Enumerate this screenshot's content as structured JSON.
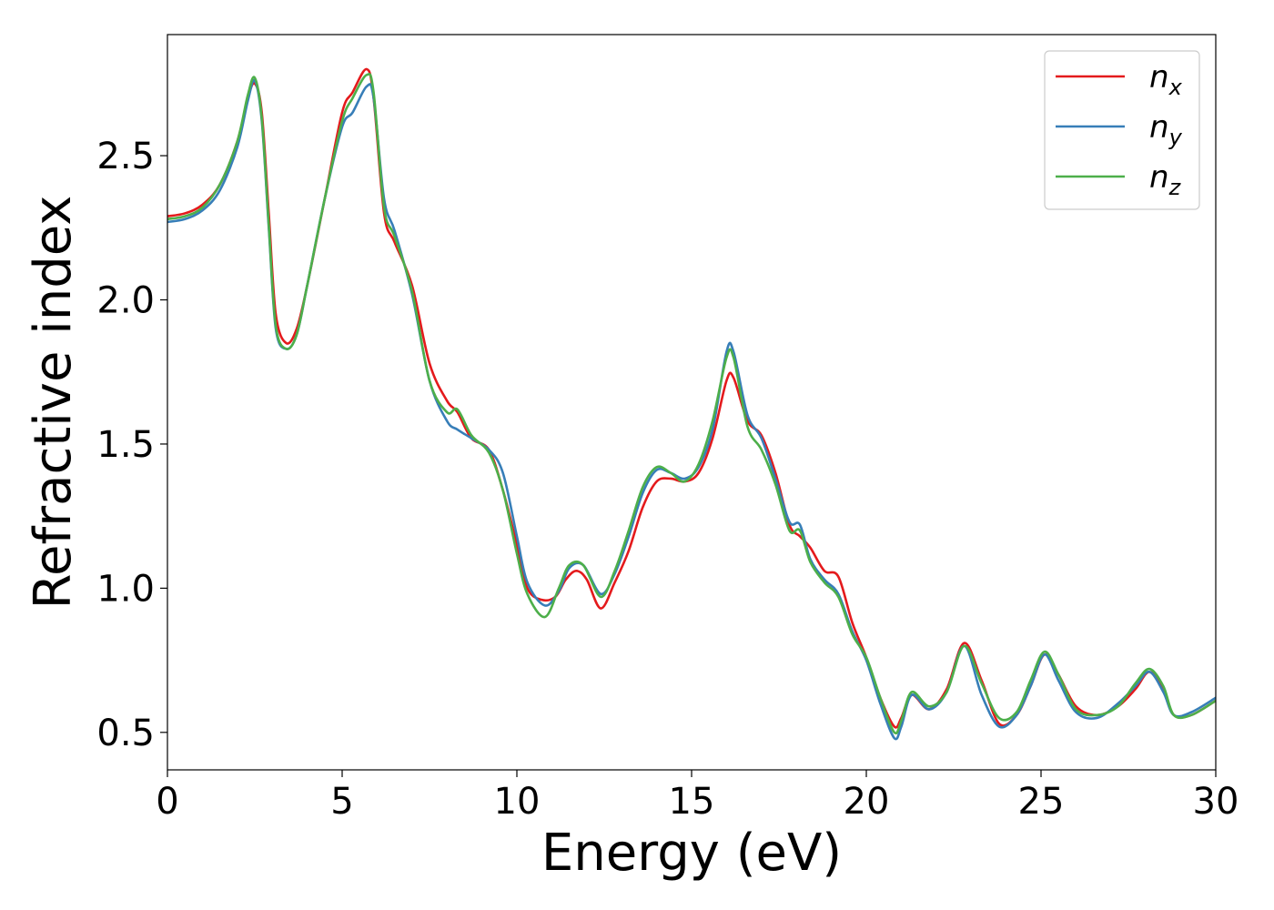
{
  "chart_data": {
    "type": "line",
    "xlabel": "Energy (eV)",
    "ylabel": "Refractive index",
    "xlim": [
      0,
      30
    ],
    "ylim": [
      0.37,
      2.92
    ],
    "xticks": [
      0,
      5,
      10,
      15,
      20,
      25,
      30
    ],
    "xtick_labels": [
      "0",
      "5",
      "10",
      "15",
      "20",
      "25",
      "30"
    ],
    "yticks": [
      0.5,
      1.0,
      1.5,
      2.0,
      2.5
    ],
    "ytick_labels": [
      "0.5",
      "1.0",
      "1.5",
      "2.0",
      "2.5"
    ],
    "grid": false,
    "legend": {
      "position": "top-right"
    },
    "series": [
      {
        "name": "n",
        "subscript": "x",
        "color": "#e41a1c",
        "points": [
          [
            0,
            2.29
          ],
          [
            0.5,
            2.3
          ],
          [
            1.0,
            2.33
          ],
          [
            1.5,
            2.4
          ],
          [
            2.0,
            2.55
          ],
          [
            2.3,
            2.7
          ],
          [
            2.5,
            2.75
          ],
          [
            2.7,
            2.65
          ],
          [
            2.9,
            2.3
          ],
          [
            3.1,
            1.95
          ],
          [
            3.4,
            1.85
          ],
          [
            3.7,
            1.9
          ],
          [
            4.0,
            2.05
          ],
          [
            4.5,
            2.35
          ],
          [
            5.0,
            2.65
          ],
          [
            5.3,
            2.72
          ],
          [
            5.7,
            2.8
          ],
          [
            5.9,
            2.7
          ],
          [
            6.2,
            2.3
          ],
          [
            6.5,
            2.2
          ],
          [
            7.0,
            2.05
          ],
          [
            7.5,
            1.78
          ],
          [
            8.0,
            1.65
          ],
          [
            8.3,
            1.61
          ],
          [
            8.7,
            1.52
          ],
          [
            9.2,
            1.48
          ],
          [
            9.6,
            1.34
          ],
          [
            10.0,
            1.15
          ],
          [
            10.3,
            1.0
          ],
          [
            10.7,
            0.96
          ],
          [
            11.1,
            0.97
          ],
          [
            11.4,
            1.03
          ],
          [
            11.7,
            1.06
          ],
          [
            12.0,
            1.03
          ],
          [
            12.4,
            0.93
          ],
          [
            12.8,
            1.02
          ],
          [
            13.2,
            1.13
          ],
          [
            13.6,
            1.28
          ],
          [
            14.0,
            1.37
          ],
          [
            14.4,
            1.38
          ],
          [
            14.8,
            1.37
          ],
          [
            15.2,
            1.4
          ],
          [
            15.6,
            1.52
          ],
          [
            16.0,
            1.72
          ],
          [
            16.2,
            1.73
          ],
          [
            16.6,
            1.58
          ],
          [
            17.0,
            1.53
          ],
          [
            17.4,
            1.4
          ],
          [
            17.8,
            1.22
          ],
          [
            18.1,
            1.18
          ],
          [
            18.4,
            1.14
          ],
          [
            18.8,
            1.06
          ],
          [
            19.2,
            1.04
          ],
          [
            19.6,
            0.88
          ],
          [
            20.0,
            0.76
          ],
          [
            20.4,
            0.62
          ],
          [
            20.8,
            0.52
          ],
          [
            21.0,
            0.55
          ],
          [
            21.3,
            0.63
          ],
          [
            21.8,
            0.58
          ],
          [
            22.3,
            0.65
          ],
          [
            22.8,
            0.81
          ],
          [
            23.3,
            0.68
          ],
          [
            23.8,
            0.53
          ],
          [
            24.3,
            0.56
          ],
          [
            24.7,
            0.66
          ],
          [
            25.1,
            0.77
          ],
          [
            25.5,
            0.7
          ],
          [
            26.0,
            0.59
          ],
          [
            26.6,
            0.56
          ],
          [
            27.2,
            0.59
          ],
          [
            27.7,
            0.65
          ],
          [
            28.1,
            0.71
          ],
          [
            28.5,
            0.65
          ],
          [
            28.8,
            0.56
          ],
          [
            29.3,
            0.56
          ],
          [
            30.0,
            0.61
          ]
        ]
      },
      {
        "name": "n",
        "subscript": "y",
        "color": "#377eb8",
        "points": [
          [
            0,
            2.27
          ],
          [
            0.5,
            2.28
          ],
          [
            1.0,
            2.31
          ],
          [
            1.5,
            2.38
          ],
          [
            2.0,
            2.53
          ],
          [
            2.3,
            2.69
          ],
          [
            2.5,
            2.76
          ],
          [
            2.7,
            2.62
          ],
          [
            2.9,
            2.25
          ],
          [
            3.1,
            1.9
          ],
          [
            3.4,
            1.83
          ],
          [
            3.7,
            1.88
          ],
          [
            4.0,
            2.05
          ],
          [
            4.5,
            2.35
          ],
          [
            5.0,
            2.6
          ],
          [
            5.3,
            2.65
          ],
          [
            5.7,
            2.74
          ],
          [
            5.9,
            2.7
          ],
          [
            6.2,
            2.35
          ],
          [
            6.5,
            2.24
          ],
          [
            7.0,
            2.02
          ],
          [
            7.5,
            1.72
          ],
          [
            8.0,
            1.58
          ],
          [
            8.3,
            1.55
          ],
          [
            8.7,
            1.52
          ],
          [
            9.2,
            1.48
          ],
          [
            9.6,
            1.4
          ],
          [
            10.0,
            1.18
          ],
          [
            10.3,
            1.02
          ],
          [
            10.8,
            0.94
          ],
          [
            11.2,
            0.99
          ],
          [
            11.5,
            1.07
          ],
          [
            11.9,
            1.08
          ],
          [
            12.4,
            0.98
          ],
          [
            12.8,
            1.05
          ],
          [
            13.2,
            1.18
          ],
          [
            13.6,
            1.33
          ],
          [
            14.0,
            1.41
          ],
          [
            14.4,
            1.4
          ],
          [
            14.8,
            1.38
          ],
          [
            15.2,
            1.42
          ],
          [
            15.6,
            1.55
          ],
          [
            16.0,
            1.82
          ],
          [
            16.2,
            1.82
          ],
          [
            16.6,
            1.6
          ],
          [
            17.0,
            1.52
          ],
          [
            17.4,
            1.38
          ],
          [
            17.8,
            1.23
          ],
          [
            18.1,
            1.22
          ],
          [
            18.4,
            1.1
          ],
          [
            18.8,
            1.03
          ],
          [
            19.2,
            0.98
          ],
          [
            19.6,
            0.85
          ],
          [
            20.0,
            0.75
          ],
          [
            20.4,
            0.6
          ],
          [
            20.8,
            0.48
          ],
          [
            21.0,
            0.52
          ],
          [
            21.3,
            0.63
          ],
          [
            21.8,
            0.58
          ],
          [
            22.3,
            0.64
          ],
          [
            22.8,
            0.8
          ],
          [
            23.3,
            0.63
          ],
          [
            23.8,
            0.52
          ],
          [
            24.3,
            0.56
          ],
          [
            24.7,
            0.66
          ],
          [
            25.1,
            0.77
          ],
          [
            25.5,
            0.68
          ],
          [
            26.0,
            0.57
          ],
          [
            26.6,
            0.55
          ],
          [
            27.2,
            0.6
          ],
          [
            27.7,
            0.66
          ],
          [
            28.1,
            0.71
          ],
          [
            28.5,
            0.64
          ],
          [
            28.8,
            0.56
          ],
          [
            29.3,
            0.57
          ],
          [
            30.0,
            0.62
          ]
        ]
      },
      {
        "name": "n",
        "subscript": "z",
        "color": "#4daf4a",
        "points": [
          [
            0,
            2.28
          ],
          [
            0.5,
            2.29
          ],
          [
            1.0,
            2.32
          ],
          [
            1.5,
            2.4
          ],
          [
            2.0,
            2.55
          ],
          [
            2.3,
            2.71
          ],
          [
            2.5,
            2.77
          ],
          [
            2.7,
            2.63
          ],
          [
            2.9,
            2.26
          ],
          [
            3.1,
            1.91
          ],
          [
            3.4,
            1.83
          ],
          [
            3.7,
            1.88
          ],
          [
            4.0,
            2.05
          ],
          [
            4.5,
            2.35
          ],
          [
            5.0,
            2.62
          ],
          [
            5.3,
            2.7
          ],
          [
            5.7,
            2.78
          ],
          [
            5.9,
            2.72
          ],
          [
            6.2,
            2.32
          ],
          [
            6.5,
            2.22
          ],
          [
            7.0,
            2.03
          ],
          [
            7.5,
            1.72
          ],
          [
            8.0,
            1.61
          ],
          [
            8.3,
            1.62
          ],
          [
            8.7,
            1.53
          ],
          [
            9.2,
            1.47
          ],
          [
            9.6,
            1.34
          ],
          [
            10.0,
            1.12
          ],
          [
            10.3,
            0.98
          ],
          [
            10.8,
            0.9
          ],
          [
            11.2,
            1.0
          ],
          [
            11.5,
            1.08
          ],
          [
            11.9,
            1.08
          ],
          [
            12.4,
            0.97
          ],
          [
            12.8,
            1.06
          ],
          [
            13.2,
            1.2
          ],
          [
            13.6,
            1.35
          ],
          [
            14.0,
            1.42
          ],
          [
            14.4,
            1.4
          ],
          [
            14.8,
            1.37
          ],
          [
            15.2,
            1.43
          ],
          [
            15.6,
            1.58
          ],
          [
            16.0,
            1.8
          ],
          [
            16.2,
            1.8
          ],
          [
            16.6,
            1.56
          ],
          [
            17.0,
            1.48
          ],
          [
            17.4,
            1.36
          ],
          [
            17.8,
            1.2
          ],
          [
            18.1,
            1.2
          ],
          [
            18.4,
            1.09
          ],
          [
            18.8,
            1.02
          ],
          [
            19.2,
            0.97
          ],
          [
            19.6,
            0.84
          ],
          [
            20.0,
            0.76
          ],
          [
            20.4,
            0.62
          ],
          [
            20.8,
            0.5
          ],
          [
            21.0,
            0.54
          ],
          [
            21.3,
            0.64
          ],
          [
            21.8,
            0.59
          ],
          [
            22.3,
            0.64
          ],
          [
            22.8,
            0.8
          ],
          [
            23.3,
            0.67
          ],
          [
            23.8,
            0.55
          ],
          [
            24.3,
            0.57
          ],
          [
            24.7,
            0.68
          ],
          [
            25.1,
            0.78
          ],
          [
            25.5,
            0.7
          ],
          [
            26.0,
            0.58
          ],
          [
            26.6,
            0.56
          ],
          [
            27.2,
            0.59
          ],
          [
            27.7,
            0.67
          ],
          [
            28.1,
            0.72
          ],
          [
            28.5,
            0.66
          ],
          [
            28.8,
            0.56
          ],
          [
            29.3,
            0.56
          ],
          [
            30.0,
            0.61
          ]
        ]
      }
    ]
  }
}
